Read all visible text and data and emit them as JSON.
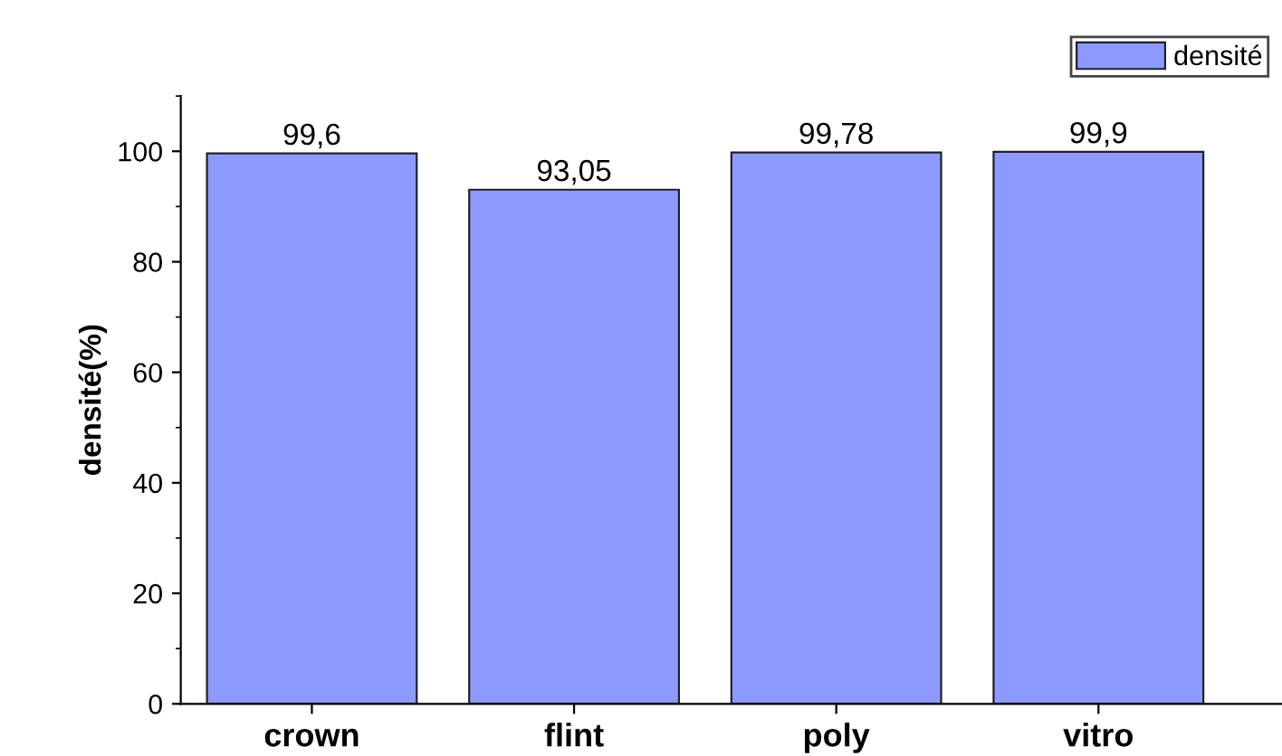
{
  "chart_data": {
    "type": "bar",
    "ylabel": "densité(%)",
    "categories": [
      "crown",
      "flint",
      "poly",
      "vitro"
    ],
    "series": [
      {
        "name": "densité",
        "color": "#8c9aff",
        "values": [
          99.6,
          93.05,
          99.78,
          99.9
        ],
        "value_labels": [
          "99,6",
          "93,05",
          "99,78",
          "99,9"
        ]
      }
    ],
    "ylim": [
      0,
      110
    ],
    "yticks": [
      0,
      20,
      40,
      60,
      80,
      100
    ],
    "grid": false,
    "legend": "top right"
  }
}
